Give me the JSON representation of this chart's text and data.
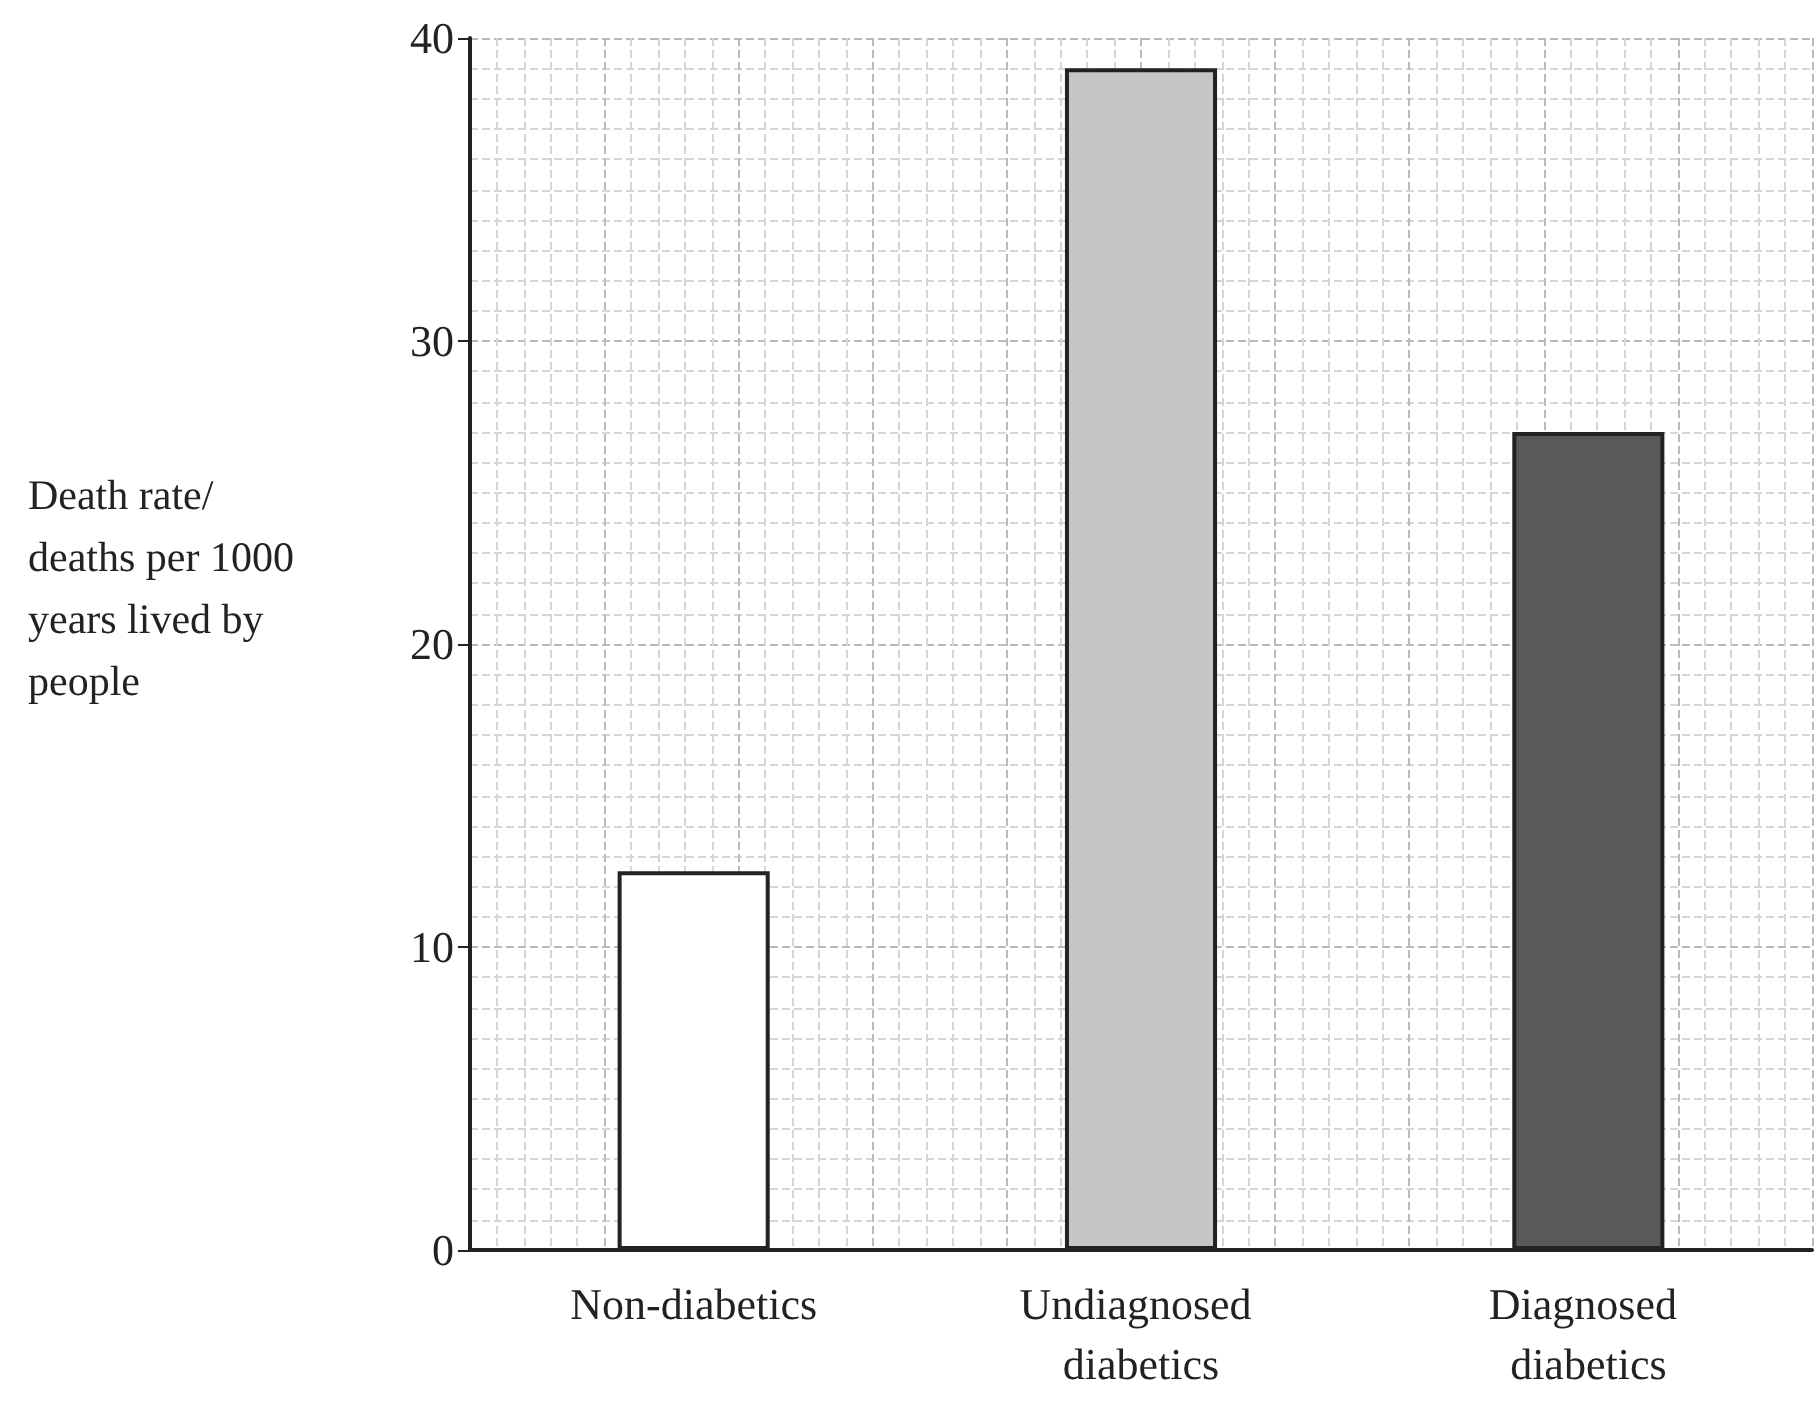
{
  "chart_data": {
    "type": "bar",
    "ylabel": "Death rate/ deaths per 1000 years lived by people",
    "categories": [
      "Non-diabetics",
      "Undiagnosed diabetics",
      "Diagnosed diabetics"
    ],
    "values": [
      12.5,
      39,
      27
    ],
    "colors": [
      "#ffffff",
      "#c6c5c6",
      "#5b5859"
    ],
    "ylim": [
      0,
      40
    ],
    "yticks": [
      0,
      10,
      20,
      30,
      40
    ],
    "grid": true
  }
}
